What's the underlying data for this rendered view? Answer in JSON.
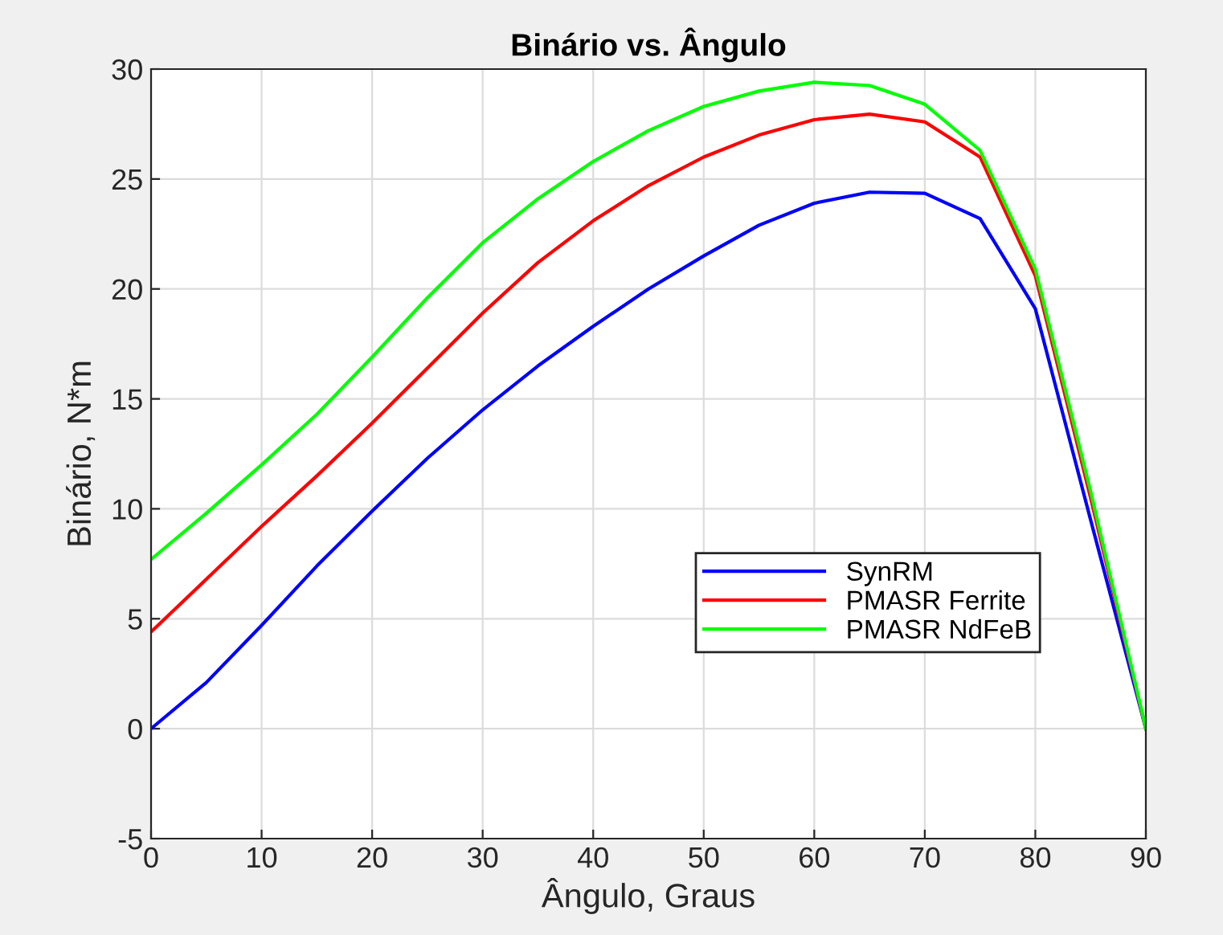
{
  "chart_data": {
    "type": "line",
    "title": "Binário vs. Ângulo",
    "xlabel": "Ângulo, Graus",
    "ylabel": "Binário, N*m",
    "x": [
      0,
      5,
      10,
      15,
      20,
      25,
      30,
      35,
      40,
      45,
      50,
      55,
      60,
      65,
      70,
      75,
      80,
      85,
      90
    ],
    "series": [
      {
        "name": "SynRM",
        "color": "#0000ff",
        "values": [
          0,
          2.1,
          4.7,
          7.4,
          9.9,
          12.3,
          14.5,
          16.5,
          18.3,
          20.0,
          21.5,
          22.9,
          23.9,
          24.4,
          24.35,
          23.2,
          19.1,
          9.5,
          0
        ]
      },
      {
        "name": "PMASR Ferrite",
        "color": "#ff0000",
        "values": [
          4.4,
          6.8,
          9.2,
          11.5,
          13.9,
          16.4,
          18.9,
          21.2,
          23.1,
          24.7,
          26.0,
          27.0,
          27.7,
          27.95,
          27.6,
          26.0,
          20.6,
          10.5,
          0
        ]
      },
      {
        "name": "PMASR NdFeB",
        "color": "#00ff00",
        "values": [
          7.7,
          9.8,
          12.0,
          14.3,
          16.9,
          19.6,
          22.1,
          24.1,
          25.8,
          27.2,
          28.3,
          29.0,
          29.4,
          29.25,
          28.4,
          26.3,
          20.9,
          10.8,
          0
        ]
      }
    ],
    "xlim": [
      0,
      90
    ],
    "xticks": [
      0,
      10,
      20,
      30,
      40,
      50,
      60,
      70,
      80,
      90
    ],
    "ylim": [
      -5,
      30
    ],
    "yticks": [
      -5,
      0,
      5,
      10,
      15,
      20,
      25,
      30
    ],
    "grid": true,
    "legend": "bottom right",
    "line_style": "solid",
    "marker": "none"
  }
}
